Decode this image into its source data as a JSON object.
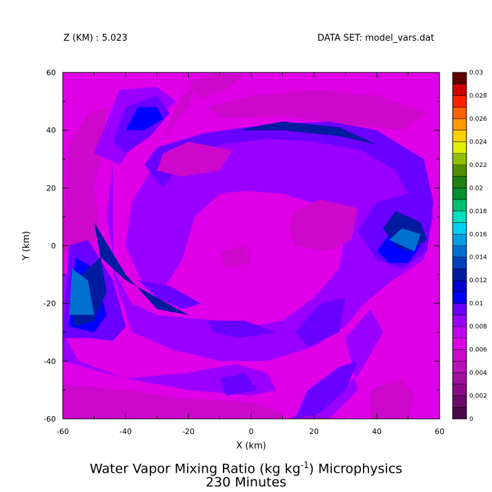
{
  "header": {
    "left": "Z (KM) : 5.023",
    "right": "DATA SET: model_vars.dat"
  },
  "title": {
    "main": "Water Vapor Mixing Ratio (kg kg",
    "exponent": "-1",
    "suffix": ") Microphysics",
    "subtitle": "230 Minutes"
  },
  "chart_data": {
    "type": "heatmap",
    "xlabel": "X (km)",
    "ylabel": "Y (km)",
    "xlim": [
      -60,
      60
    ],
    "ylim": [
      -60,
      60
    ],
    "xticks": [
      -60,
      -40,
      -20,
      0,
      20,
      40,
      60
    ],
    "yticks": [
      -60,
      -40,
      -20,
      0,
      20,
      40,
      60
    ],
    "colorbar": {
      "levels": [
        0,
        0.001,
        0.002,
        0.003,
        0.004,
        0.005,
        0.006,
        0.007,
        0.008,
        0.009,
        0.01,
        0.011,
        0.012,
        0.013,
        0.014,
        0.015,
        0.016,
        0.017,
        0.018,
        0.019,
        0.02,
        0.021,
        0.022,
        0.023,
        0.024,
        0.025,
        0.026,
        0.027,
        0.028,
        0.029,
        0.03
      ],
      "tick_labels": [
        "0",
        "0.002",
        "0.004",
        "0.006",
        "0.008",
        "0.01",
        "0.012",
        "0.014",
        "0.016",
        "0.018",
        "0.02",
        "0.022",
        "0.024",
        "0.026",
        "0.028",
        "0.03"
      ],
      "colors": [
        "#4a0a4a",
        "#6a0a6a",
        "#8a0a8a",
        "#a010a0",
        "#b810b8",
        "#cc08cc",
        "#e000e8",
        "#c000f0",
        "#9a00ff",
        "#6a00ff",
        "#0000ff",
        "#0000d0",
        "#001aa0",
        "#0040c0",
        "#0070d0",
        "#00a0e0",
        "#00d0f0",
        "#00e0c0",
        "#00c070",
        "#009030",
        "#208010",
        "#509000",
        "#90c000",
        "#e0f000",
        "#ffd000",
        "#ff9a00",
        "#ff6000",
        "#ff2000",
        "#d00000",
        "#600000"
      ]
    },
    "background_value": 0.0068,
    "regions": [
      {
        "value": 0.0057,
        "points": [
          [
            -60,
            -48
          ],
          [
            -40,
            -50
          ],
          [
            -20,
            -53
          ],
          [
            0,
            -54
          ],
          [
            10,
            -58
          ],
          [
            10,
            -60
          ],
          [
            -60,
            -60
          ]
        ]
      },
      {
        "value": 0.0057,
        "points": [
          [
            -60,
            8
          ],
          [
            -58,
            35
          ],
          [
            -52,
            46
          ],
          [
            -46,
            48
          ],
          [
            -48,
            30
          ],
          [
            -50,
            20
          ],
          [
            -48,
            5
          ],
          [
            -52,
            -2
          ],
          [
            -60,
            -2
          ]
        ]
      },
      {
        "value": 0.0057,
        "points": [
          [
            -20,
            56
          ],
          [
            -12,
            60
          ],
          [
            -2,
            59
          ],
          [
            -8,
            54
          ],
          [
            -16,
            51
          ]
        ]
      },
      {
        "value": 0.0057,
        "points": [
          [
            -14,
            48
          ],
          [
            0,
            52
          ],
          [
            20,
            54
          ],
          [
            40,
            52
          ],
          [
            56,
            46
          ],
          [
            48,
            40
          ],
          [
            30,
            42
          ],
          [
            10,
            45
          ],
          [
            -10,
            44
          ]
        ]
      },
      {
        "value": 0.0057,
        "points": [
          [
            38,
            -50
          ],
          [
            48,
            -46
          ],
          [
            52,
            -52
          ],
          [
            50,
            -60
          ],
          [
            38,
            -60
          ]
        ]
      },
      {
        "value": 0.008,
        "points": [
          [
            -48,
            -10
          ],
          [
            -58,
            -4
          ],
          [
            -60,
            -30
          ],
          [
            -55,
            -40
          ],
          [
            -40,
            -46
          ],
          [
            -20,
            -44
          ],
          [
            -5,
            -41
          ],
          [
            5,
            -44
          ],
          [
            8,
            -50
          ],
          [
            0,
            -52
          ],
          [
            -20,
            -50
          ],
          [
            -40,
            -46
          ],
          [
            -60,
            -40
          ],
          [
            -60,
            -10
          ]
        ]
      },
      {
        "value": 0.008,
        "points": [
          [
            -44,
            28
          ],
          [
            -46,
            10
          ],
          [
            -43,
            -10
          ],
          [
            -38,
            -20
          ],
          [
            -30,
            -24
          ],
          [
            -20,
            -25
          ],
          [
            -10,
            -26
          ],
          [
            0,
            -28
          ],
          [
            10,
            -26
          ],
          [
            20,
            -18
          ],
          [
            28,
            -8
          ],
          [
            30,
            5
          ],
          [
            22,
            14
          ],
          [
            10,
            18
          ],
          [
            -2,
            19
          ],
          [
            -10,
            18
          ],
          [
            -18,
            10
          ],
          [
            -22,
            -5
          ],
          [
            -28,
            -15
          ],
          [
            -35,
            -12
          ],
          [
            -40,
            0
          ],
          [
            -38,
            15
          ],
          [
            -32,
            26
          ],
          [
            -20,
            34
          ],
          [
            -5,
            38
          ],
          [
            10,
            41
          ],
          [
            25,
            41
          ],
          [
            40,
            37
          ],
          [
            55,
            28
          ],
          [
            58,
            10
          ],
          [
            55,
            -5
          ],
          [
            45,
            -12
          ],
          [
            36,
            -20
          ],
          [
            30,
            -28
          ],
          [
            20,
            -35
          ],
          [
            5,
            -40
          ],
          [
            -10,
            -40
          ],
          [
            -25,
            -36
          ],
          [
            -38,
            -30
          ],
          [
            -44,
            -10
          ]
        ]
      },
      {
        "value": 0.008,
        "points": [
          [
            30,
            -32
          ],
          [
            38,
            -22
          ],
          [
            42,
            -30
          ],
          [
            34,
            -45
          ],
          [
            22,
            -55
          ],
          [
            12,
            -60
          ],
          [
            25,
            -60
          ],
          [
            34,
            -50
          ]
        ]
      },
      {
        "value": 0.008,
        "points": [
          [
            -50,
            32
          ],
          [
            -42,
            54
          ],
          [
            -30,
            55
          ],
          [
            -24,
            50
          ],
          [
            -34,
            40
          ],
          [
            -42,
            28
          ]
        ]
      },
      {
        "value": 0.0093,
        "points": [
          [
            -60,
            -32
          ],
          [
            -58,
            0
          ],
          [
            -52,
            2
          ],
          [
            -44,
            -12
          ],
          [
            -40,
            -28
          ],
          [
            -44,
            -33
          ],
          [
            -52,
            -32
          ]
        ]
      },
      {
        "value": 0.0093,
        "points": [
          [
            -28,
            20
          ],
          [
            -34,
            28
          ],
          [
            -30,
            34
          ],
          [
            -15,
            39
          ],
          [
            5,
            42
          ],
          [
            25,
            43
          ],
          [
            40,
            40
          ],
          [
            55,
            30
          ],
          [
            58,
            15
          ],
          [
            56,
            -2
          ],
          [
            48,
            -8
          ],
          [
            40,
            -5
          ],
          [
            34,
            5
          ],
          [
            40,
            15
          ],
          [
            50,
            18
          ],
          [
            46,
            26
          ],
          [
            35,
            33
          ],
          [
            20,
            36
          ],
          [
            5,
            37
          ],
          [
            -10,
            35
          ],
          [
            -22,
            30
          ]
        ]
      },
      {
        "value": 0.0093,
        "points": [
          [
            -44,
            36
          ],
          [
            -40,
            48
          ],
          [
            -30,
            52
          ],
          [
            -26,
            46
          ],
          [
            -32,
            38
          ],
          [
            -40,
            32
          ]
        ]
      },
      {
        "value": 0.0093,
        "points": [
          [
            14,
            -30
          ],
          [
            22,
            -20
          ],
          [
            30,
            -18
          ],
          [
            28,
            -30
          ],
          [
            18,
            -35
          ]
        ]
      },
      {
        "value": 0.0093,
        "points": [
          [
            14,
            -60
          ],
          [
            18,
            -50
          ],
          [
            28,
            -42
          ],
          [
            34,
            -40
          ],
          [
            30,
            -50
          ],
          [
            22,
            -58
          ]
        ]
      },
      {
        "value": 0.0093,
        "points": [
          [
            -36,
            -12
          ],
          [
            -30,
            -18
          ],
          [
            -22,
            -22
          ],
          [
            -16,
            -20
          ],
          [
            -26,
            -14
          ]
        ]
      },
      {
        "value": 0.0093,
        "points": [
          [
            -14,
            -26
          ],
          [
            -2,
            -26
          ],
          [
            8,
            -30
          ],
          [
            -4,
            -32
          ],
          [
            -12,
            -30
          ]
        ]
      },
      {
        "value": 0.0093,
        "points": [
          [
            -10,
            -46
          ],
          [
            -2,
            -44
          ],
          [
            2,
            -50
          ],
          [
            -8,
            -52
          ]
        ]
      },
      {
        "value": 0.0105,
        "points": [
          [
            -58,
            -28
          ],
          [
            -56,
            -4
          ],
          [
            -50,
            -8
          ],
          [
            -46,
            -24
          ],
          [
            -50,
            -30
          ]
        ]
      },
      {
        "value": 0.0105,
        "points": [
          [
            -40,
            40
          ],
          [
            -36,
            48
          ],
          [
            -30,
            48
          ],
          [
            -28,
            44
          ],
          [
            -34,
            40
          ]
        ]
      },
      {
        "value": 0.0105,
        "points": [
          [
            40,
            -2
          ],
          [
            44,
            4
          ],
          [
            52,
            6
          ],
          [
            54,
            0
          ],
          [
            50,
            -6
          ],
          [
            44,
            -6
          ]
        ]
      },
      {
        "value": 0.0125,
        "points": [
          [
            -50,
            8
          ],
          [
            -40,
            -10
          ],
          [
            -30,
            -22
          ],
          [
            -20,
            -24
          ],
          [
            -30,
            -18
          ],
          [
            -40,
            -12
          ],
          [
            -48,
            -4
          ],
          [
            -54,
            -10
          ],
          [
            -58,
            -20
          ],
          [
            -56,
            -28
          ],
          [
            -50,
            -26
          ],
          [
            -46,
            -16
          ]
        ]
      },
      {
        "value": 0.0125,
        "points": [
          [
            -4,
            40
          ],
          [
            10,
            40
          ],
          [
            28,
            38
          ],
          [
            40,
            35
          ],
          [
            28,
            41
          ],
          [
            10,
            43
          ]
        ]
      },
      {
        "value": 0.0125,
        "points": [
          [
            42,
            6
          ],
          [
            46,
            12
          ],
          [
            54,
            8
          ],
          [
            56,
            2
          ],
          [
            50,
            -2
          ],
          [
            46,
            0
          ]
        ]
      },
      {
        "value": 0.014,
        "points": [
          [
            -58,
            -24
          ],
          [
            -57,
            -8
          ],
          [
            -52,
            -12
          ],
          [
            -50,
            -24
          ]
        ]
      },
      {
        "value": 0.014,
        "points": [
          [
            44,
            2
          ],
          [
            48,
            6
          ],
          [
            54,
            4
          ],
          [
            52,
            -2
          ]
        ]
      },
      {
        "value": 0.0058,
        "points": [
          [
            -28,
            32
          ],
          [
            -20,
            36
          ],
          [
            -6,
            33
          ],
          [
            -10,
            26
          ],
          [
            -22,
            24
          ],
          [
            -30,
            26
          ]
        ]
      },
      {
        "value": 0.0058,
        "points": [
          [
            14,
            12
          ],
          [
            22,
            16
          ],
          [
            34,
            13
          ],
          [
            32,
            2
          ],
          [
            24,
            -2
          ],
          [
            14,
            0
          ],
          [
            12,
            6
          ]
        ]
      },
      {
        "value": 0.0058,
        "points": [
          [
            -10,
            -2
          ],
          [
            -2,
            0
          ],
          [
            0,
            -6
          ],
          [
            -8,
            -8
          ]
        ]
      },
      {
        "value": 0.0058,
        "points": [
          [
            -28,
            38
          ],
          [
            -22,
            52
          ],
          [
            -18,
            55
          ],
          [
            -20,
            48
          ]
        ]
      }
    ]
  }
}
